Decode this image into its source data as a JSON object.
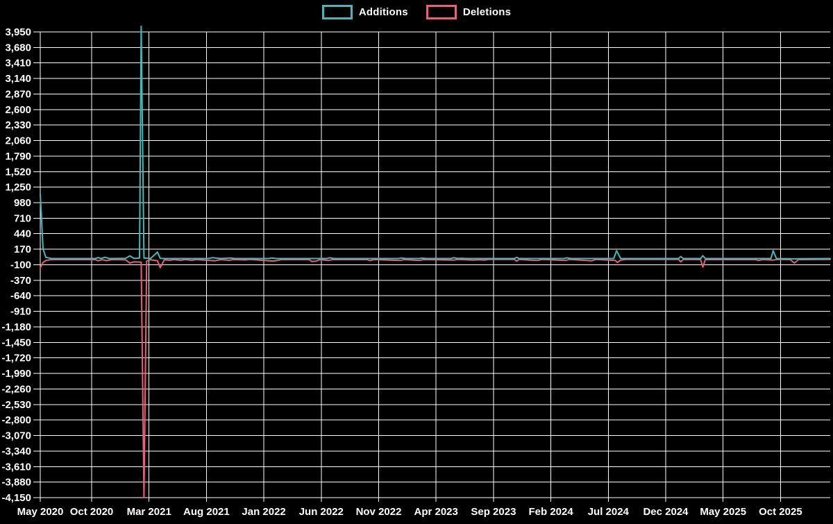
{
  "page": {
    "background": "#000000"
  },
  "legend": {
    "items": [
      {
        "label": "Additions",
        "color": "#3DBCBC"
      },
      {
        "label": "Deletions",
        "color": "#F25C78"
      }
    ]
  },
  "colors": {
    "background": "#000000",
    "grid": "#FFFFFF",
    "text": "#FFFFFF",
    "additions": "#3DBCBC",
    "deletions": "#F25C78"
  },
  "chart_data": {
    "type": "line",
    "title": "",
    "xlabel": "",
    "ylabel": "",
    "grid": true,
    "legend_position": "top-center",
    "x_unit": "weeks since mid-May 2020",
    "xlim_weeks": [
      0,
      286.5
    ],
    "ylim": [
      -4150,
      4070
    ],
    "x_axis": {
      "tick_labels": [
        "May 2020",
        "Oct 2020",
        "Mar 2021",
        "Aug 2021",
        "Jan 2022",
        "Jun 2022",
        "Nov 2022",
        "Apr 2023",
        "Sep 2023",
        "Feb 2024",
        "Jul 2024",
        "Dec 2024",
        "May 2025",
        "Oct 2025"
      ]
    },
    "y_axis": {
      "tick_values": [
        3950,
        3680,
        3410,
        3140,
        2870,
        2600,
        2330,
        2060,
        1790,
        1520,
        1250,
        980,
        710,
        440,
        170,
        -100,
        -370,
        -640,
        -910,
        -1180,
        -1450,
        -1720,
        -1990,
        -2260,
        -2530,
        -2800,
        -3070,
        -3340,
        -3610,
        -3880,
        -4150
      ],
      "tick_labels": [
        "3,950",
        "3,680",
        "3,410",
        "3,140",
        "2,870",
        "2,600",
        "2,330",
        "2,060",
        "1,790",
        "1,520",
        "1,250",
        "980",
        "710",
        "440",
        "170",
        "-100",
        "-370",
        "-640",
        "-910",
        "-1,180",
        "-1,450",
        "-1,720",
        "-1,990",
        "-2,260",
        "-2,530",
        "-2,800",
        "-3,070",
        "-3,340",
        "-3,610",
        "-3,880",
        "-4,150"
      ]
    },
    "series": [
      {
        "name": "Deletions",
        "color_key": "deletions",
        "points": [
          [
            0,
            -150
          ],
          [
            1,
            -60
          ],
          [
            2,
            -25
          ],
          [
            4,
            -10
          ],
          [
            20,
            -10
          ],
          [
            21,
            -30
          ],
          [
            22.5,
            -12
          ],
          [
            24,
            -28
          ],
          [
            26,
            -10
          ],
          [
            31,
            -15
          ],
          [
            32.5,
            -70
          ],
          [
            34,
            -50
          ],
          [
            36.6,
            -55
          ],
          [
            37.6,
            -4150
          ],
          [
            38.6,
            -35
          ],
          [
            40,
            -14
          ],
          [
            42.5,
            -30
          ],
          [
            43.5,
            -150
          ],
          [
            45,
            -14
          ],
          [
            47,
            -22
          ],
          [
            48.5,
            -10
          ],
          [
            51,
            -22
          ],
          [
            52.5,
            -10
          ],
          [
            55,
            -22
          ],
          [
            56.5,
            -10
          ],
          [
            61.5,
            -26
          ],
          [
            63.5,
            -30
          ],
          [
            65.5,
            -10
          ],
          [
            68.5,
            -22
          ],
          [
            70,
            -10
          ],
          [
            74.5,
            -16
          ],
          [
            76,
            -8
          ],
          [
            83,
            -30
          ],
          [
            84.5,
            -35
          ],
          [
            86,
            -26
          ],
          [
            87.5,
            -10
          ],
          [
            97.5,
            -10
          ],
          [
            98.5,
            -42
          ],
          [
            100,
            -38
          ],
          [
            101.5,
            -10
          ],
          [
            104.5,
            -26
          ],
          [
            106,
            -10
          ],
          [
            118.5,
            -10
          ],
          [
            119.5,
            -28
          ],
          [
            121,
            -10
          ],
          [
            130.5,
            -24
          ],
          [
            132,
            -10
          ],
          [
            137.5,
            -26
          ],
          [
            139,
            -10
          ],
          [
            150,
            -18
          ],
          [
            151.5,
            -8
          ],
          [
            157,
            -18
          ],
          [
            159,
            -13
          ],
          [
            161,
            -18
          ],
          [
            162.5,
            -8
          ],
          [
            172,
            -8
          ],
          [
            172.8,
            -38
          ],
          [
            173.6,
            -8
          ],
          [
            178.5,
            -22
          ],
          [
            180.5,
            -24
          ],
          [
            182,
            -8
          ],
          [
            190.5,
            -26
          ],
          [
            192,
            -8
          ],
          [
            200,
            -30
          ],
          [
            201.5,
            -8
          ],
          [
            208.5,
            -24
          ],
          [
            209.3,
            -60
          ],
          [
            210.5,
            -18
          ],
          [
            212.5,
            -8
          ],
          [
            231.5,
            -8
          ],
          [
            232.3,
            -48
          ],
          [
            233.2,
            -8
          ],
          [
            239.5,
            -10
          ],
          [
            240.3,
            -140
          ],
          [
            241.2,
            -10
          ],
          [
            259.5,
            -10
          ],
          [
            260.5,
            -26
          ],
          [
            262,
            -10
          ],
          [
            265.8,
            -20
          ],
          [
            267,
            -8
          ],
          [
            272,
            -10
          ],
          [
            273.5,
            -70
          ],
          [
            275,
            -10
          ],
          [
            286.5,
            -8
          ]
        ]
      },
      {
        "name": "Additions",
        "color_key": "additions",
        "points": [
          [
            0,
            1130
          ],
          [
            1,
            180
          ],
          [
            2,
            30
          ],
          [
            4,
            8
          ],
          [
            20,
            8
          ],
          [
            21,
            25
          ],
          [
            22,
            8
          ],
          [
            23.5,
            30
          ],
          [
            25,
            8
          ],
          [
            31,
            12
          ],
          [
            32.5,
            55
          ],
          [
            34,
            10
          ],
          [
            36,
            18
          ],
          [
            36.6,
            4050
          ],
          [
            37.6,
            18
          ],
          [
            40,
            8
          ],
          [
            42.5,
            120
          ],
          [
            43.5,
            12
          ],
          [
            45,
            8
          ],
          [
            61,
            8
          ],
          [
            62.5,
            24
          ],
          [
            64,
            14
          ],
          [
            65.5,
            8
          ],
          [
            68,
            14
          ],
          [
            69,
            18
          ],
          [
            70.5,
            8
          ],
          [
            83,
            8
          ],
          [
            84,
            18
          ],
          [
            85.5,
            8
          ],
          [
            104,
            8
          ],
          [
            105,
            22
          ],
          [
            106.5,
            8
          ],
          [
            130,
            8
          ],
          [
            131,
            18
          ],
          [
            132.5,
            8
          ],
          [
            137.5,
            8
          ],
          [
            138.5,
            15
          ],
          [
            140,
            8
          ],
          [
            149,
            8
          ],
          [
            150,
            22
          ],
          [
            151.5,
            10
          ],
          [
            153,
            13
          ],
          [
            154.5,
            8
          ],
          [
            172,
            8
          ],
          [
            172.8,
            30
          ],
          [
            173.6,
            8
          ],
          [
            190,
            8
          ],
          [
            191,
            20
          ],
          [
            192.5,
            8
          ],
          [
            208,
            8
          ],
          [
            209,
            145
          ],
          [
            210.5,
            10
          ],
          [
            213,
            8
          ],
          [
            231.5,
            8
          ],
          [
            232.3,
            42
          ],
          [
            233.2,
            8
          ],
          [
            239.5,
            8
          ],
          [
            240.3,
            58
          ],
          [
            241.2,
            8
          ],
          [
            265,
            8
          ],
          [
            265.8,
            145
          ],
          [
            267,
            8
          ],
          [
            272,
            5
          ],
          [
            273.5,
            1
          ],
          [
            275,
            6
          ],
          [
            286.5,
            8
          ]
        ]
      }
    ]
  }
}
